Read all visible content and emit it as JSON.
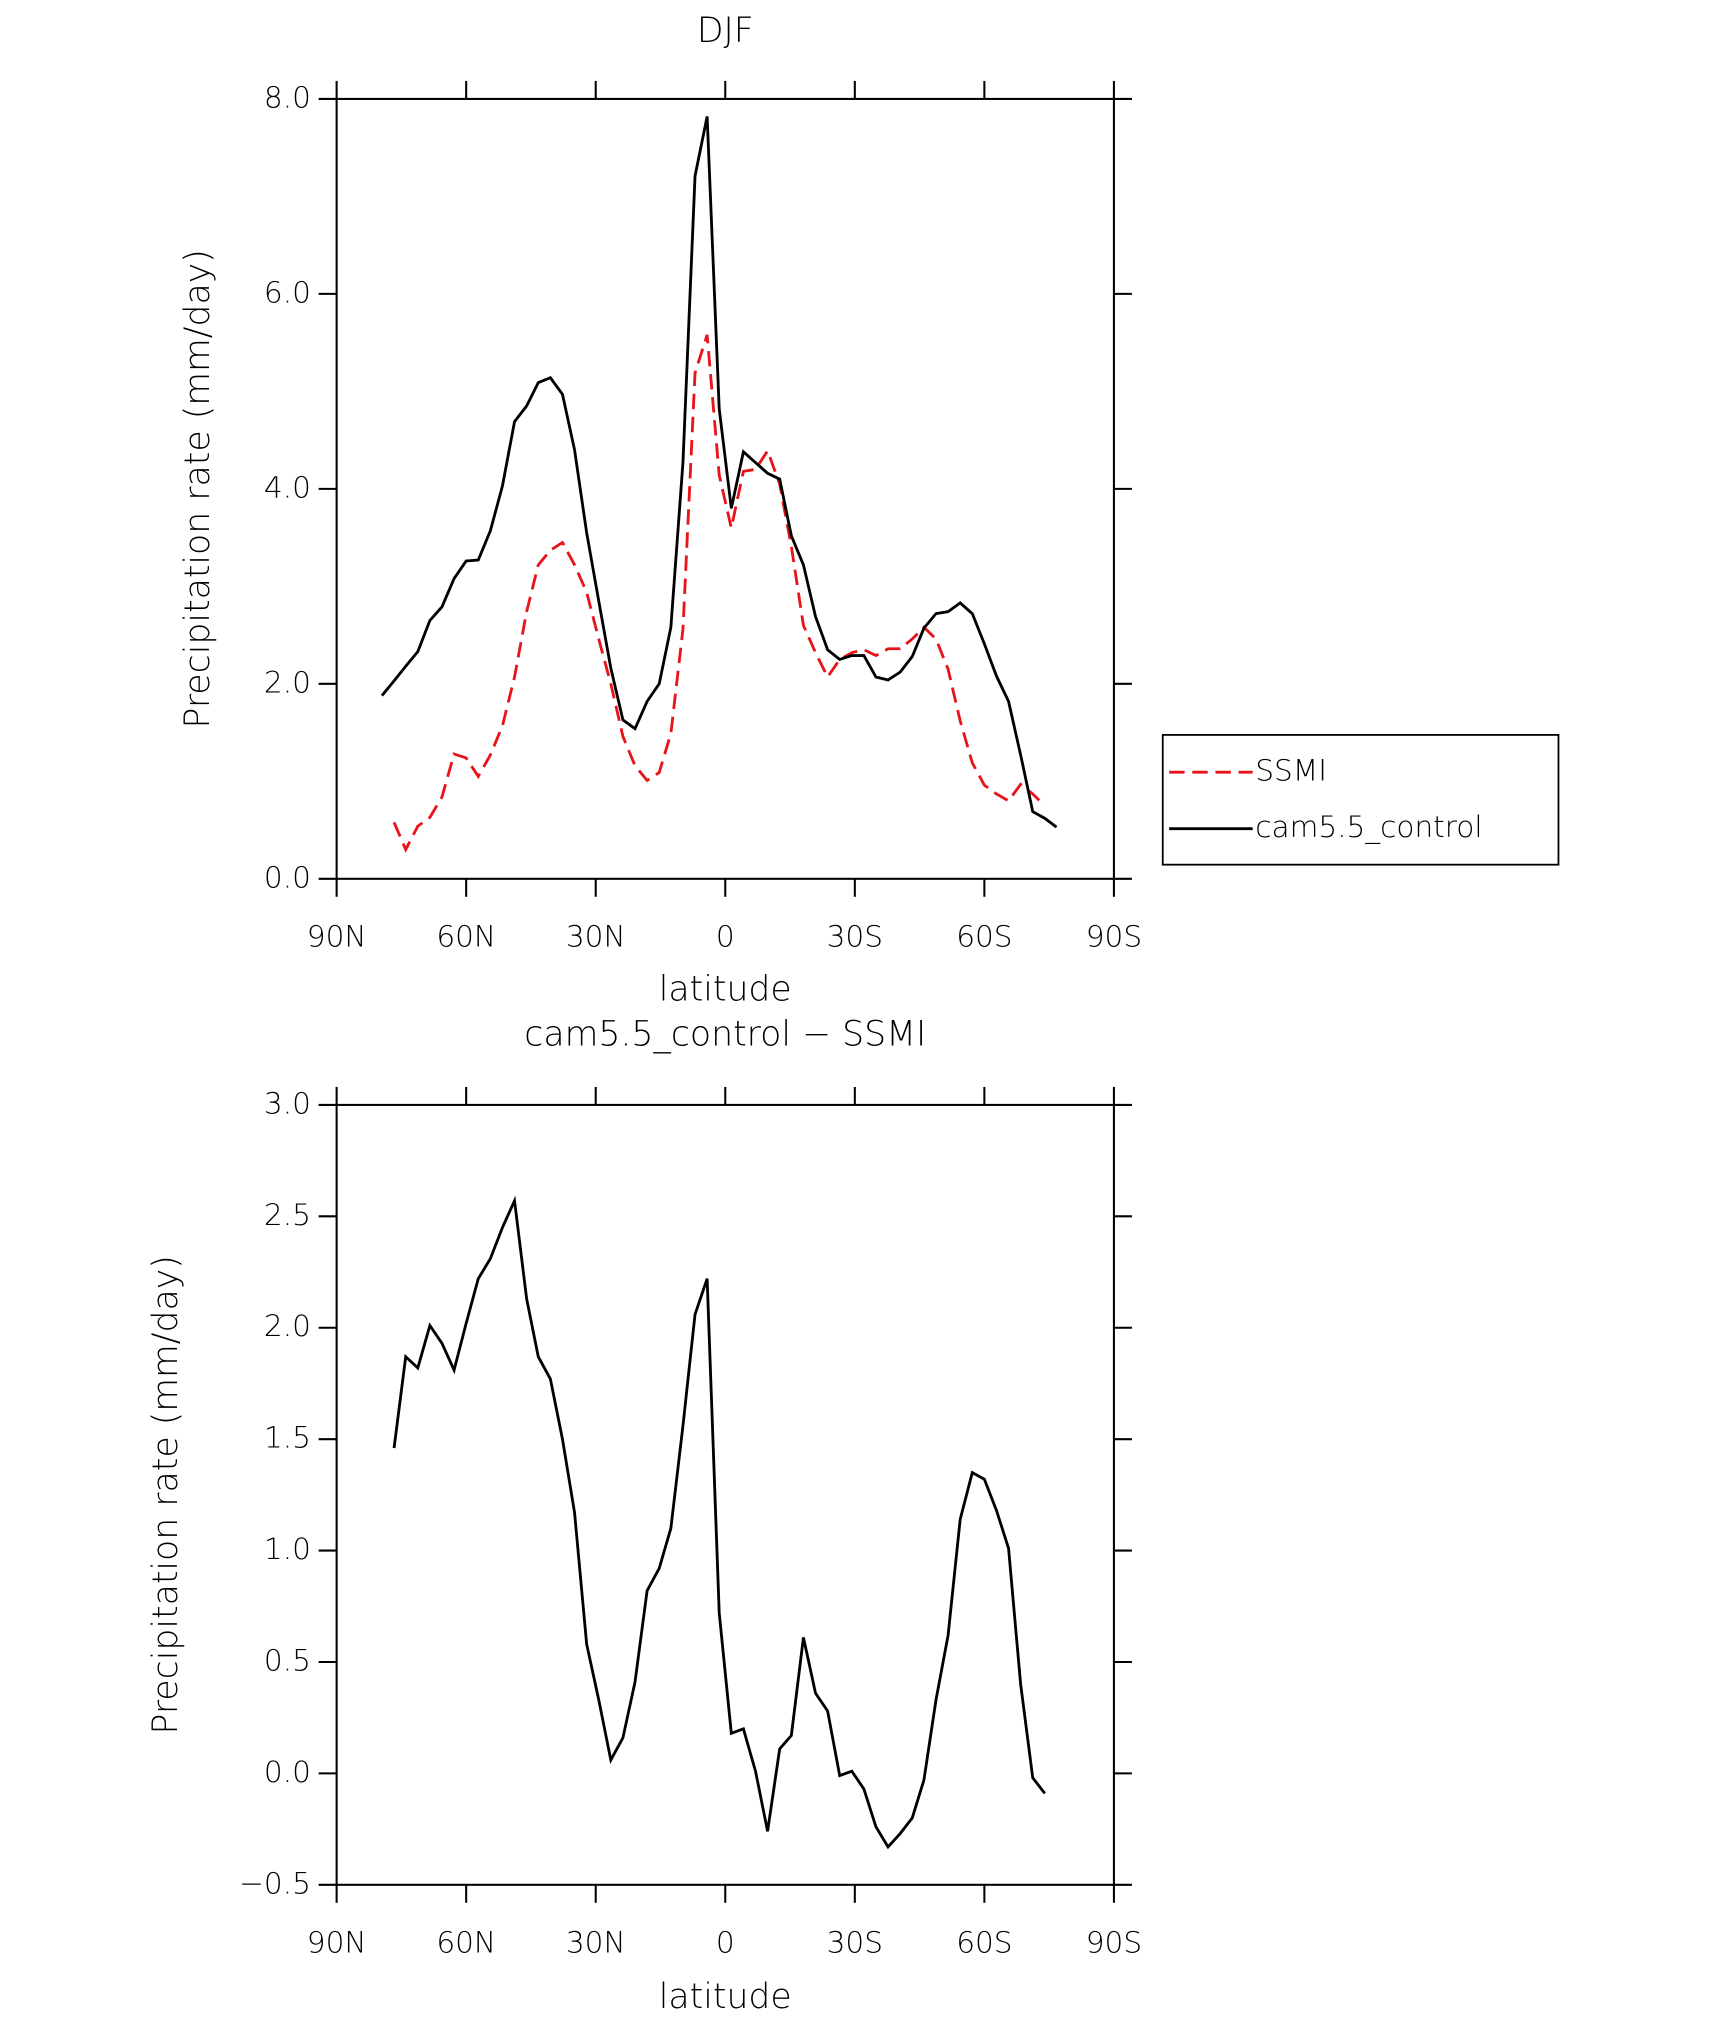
{
  "chart_data": [
    {
      "type": "line",
      "title": "DJF",
      "xlabel": "latitude",
      "ylabel": "Precipitation rate (mm/day)",
      "x": [
        79.5,
        76.7,
        74.0,
        71.2,
        68.4,
        65.6,
        62.8,
        60.0,
        57.2,
        54.4,
        51.6,
        48.8,
        46.0,
        43.3,
        40.5,
        37.7,
        34.9,
        32.1,
        29.3,
        26.5,
        23.7,
        20.9,
        18.1,
        15.3,
        12.6,
        9.8,
        7.0,
        4.2,
        1.4,
        -1.4,
        -4.2,
        -7.0,
        -9.8,
        -12.6,
        -15.3,
        -18.1,
        -20.9,
        -23.7,
        -26.5,
        -29.3,
        -32.1,
        -34.9,
        -37.7,
        -40.5,
        -43.3,
        -46.0,
        -48.8,
        -51.6,
        -54.4,
        -57.2,
        -60.0,
        -62.8,
        -65.6,
        -68.4,
        -71.2,
        -74.0,
        -76.7
      ],
      "series": [
        {
          "name": "SSMI",
          "color": "#e8141c",
          "line_style": "dashed",
          "values": [
            null,
            0.58,
            0.3,
            0.54,
            0.63,
            0.84,
            1.28,
            1.24,
            1.05,
            1.27,
            1.57,
            2.07,
            2.74,
            3.22,
            3.37,
            3.45,
            3.22,
            2.94,
            2.46,
            2.0,
            1.46,
            1.16,
            1.01,
            1.09,
            1.49,
            2.56,
            5.19,
            5.58,
            4.14,
            3.6,
            4.18,
            4.2,
            4.39,
            4.05,
            3.41,
            2.6,
            2.32,
            2.07,
            2.25,
            2.32,
            2.35,
            2.29,
            2.36,
            2.36,
            2.46,
            2.58,
            2.46,
            2.15,
            1.62,
            1.19,
            0.96,
            0.87,
            0.8,
            0.97,
            0.87,
            0.75,
            null
          ]
        },
        {
          "name": "cam5.5_control",
          "color": "#000000",
          "line_style": "solid",
          "values": [
            1.88,
            2.03,
            2.18,
            2.33,
            2.65,
            2.79,
            3.08,
            3.26,
            3.27,
            3.57,
            4.03,
            4.69,
            4.85,
            5.09,
            5.14,
            4.97,
            4.4,
            3.55,
            2.85,
            2.16,
            1.63,
            1.54,
            1.82,
            2.0,
            2.58,
            4.27,
            7.21,
            7.82,
            4.82,
            3.8,
            4.38,
            4.27,
            4.16,
            4.1,
            3.52,
            3.22,
            2.69,
            2.35,
            2.25,
            2.29,
            2.29,
            2.07,
            2.04,
            2.12,
            2.28,
            2.57,
            2.72,
            2.74,
            2.83,
            2.72,
            2.41,
            2.08,
            1.82,
            1.27,
            0.69,
            0.62,
            0.53
          ]
        }
      ],
      "xlim": [
        90,
        -90
      ],
      "xticks": [
        {
          "value": 90,
          "label": "90N"
        },
        {
          "value": 60,
          "label": "60N"
        },
        {
          "value": 30,
          "label": "30N"
        },
        0,
        {
          "value": -30,
          "label": "30S"
        },
        {
          "value": -60,
          "label": "60S"
        },
        {
          "value": -90,
          "label": "90S"
        }
      ],
      "ylim": [
        0,
        8
      ],
      "yticks": [
        {
          "value": 0,
          "label": "0.0"
        },
        {
          "value": 2,
          "label": "2.0"
        },
        {
          "value": 4,
          "label": "4.0"
        },
        {
          "value": 6,
          "label": "6.0"
        },
        {
          "value": 8,
          "label": "8.0"
        }
      ],
      "legend": "right"
    },
    {
      "type": "line",
      "title": "cam5.5_control − SSMI",
      "xlabel": "latitude",
      "ylabel": "Precipitation rate (mm/day)",
      "x": [
        79.5,
        76.7,
        74.0,
        71.2,
        68.4,
        65.6,
        62.8,
        60.0,
        57.2,
        54.4,
        51.6,
        48.8,
        46.0,
        43.3,
        40.5,
        37.7,
        34.9,
        32.1,
        29.3,
        26.5,
        23.7,
        20.9,
        18.1,
        15.3,
        12.6,
        9.8,
        7.0,
        4.2,
        1.4,
        -1.4,
        -4.2,
        -7.0,
        -9.8,
        -12.6,
        -15.3,
        -18.1,
        -20.9,
        -23.7,
        -26.5,
        -29.3,
        -32.1,
        -34.9,
        -37.7,
        -40.5,
        -43.3,
        -46.0,
        -48.8,
        -51.6,
        -54.4,
        -57.2,
        -60.0,
        -62.8,
        -65.6,
        -68.4,
        -71.2,
        -74.0,
        -76.7
      ],
      "series": [
        {
          "color": "#000000",
          "line_style": "solid",
          "values": [
            null,
            1.46,
            1.87,
            1.82,
            2.01,
            1.93,
            1.81,
            2.02,
            2.22,
            2.31,
            2.45,
            2.57,
            2.13,
            1.87,
            1.77,
            1.5,
            1.17,
            0.58,
            0.33,
            0.06,
            0.16,
            0.41,
            0.82,
            0.92,
            1.1,
            1.56,
            2.06,
            2.22,
            0.72,
            0.18,
            0.2,
            0.01,
            -0.26,
            0.11,
            0.17,
            0.61,
            0.36,
            0.28,
            -0.01,
            0.01,
            -0.07,
            -0.24,
            -0.33,
            -0.27,
            -0.2,
            -0.03,
            0.33,
            0.62,
            1.14,
            1.35,
            1.32,
            1.18,
            1.01,
            0.4,
            -0.02,
            -0.09,
            null
          ]
        }
      ],
      "xlim": [
        90,
        -90
      ],
      "xticks": [
        {
          "value": 90,
          "label": "90N"
        },
        {
          "value": 60,
          "label": "60N"
        },
        {
          "value": 30,
          "label": "30N"
        },
        0,
        {
          "value": -30,
          "label": "30S"
        },
        {
          "value": -60,
          "label": "60S"
        },
        {
          "value": -90,
          "label": "90S"
        }
      ],
      "ylim": [
        -0.5,
        3
      ],
      "yticks": [
        {
          "value": -0.5,
          "label": "−0.5"
        },
        {
          "value": 0,
          "label": "0.0"
        },
        {
          "value": 0.5,
          "label": "0.5"
        },
        {
          "value": 1,
          "label": "1.0"
        },
        {
          "value": 1.5,
          "label": "1.5"
        },
        {
          "value": 2,
          "label": "2.0"
        },
        {
          "value": 2.5,
          "label": "2.5"
        },
        {
          "value": 3,
          "label": "3.0"
        }
      ]
    }
  ]
}
